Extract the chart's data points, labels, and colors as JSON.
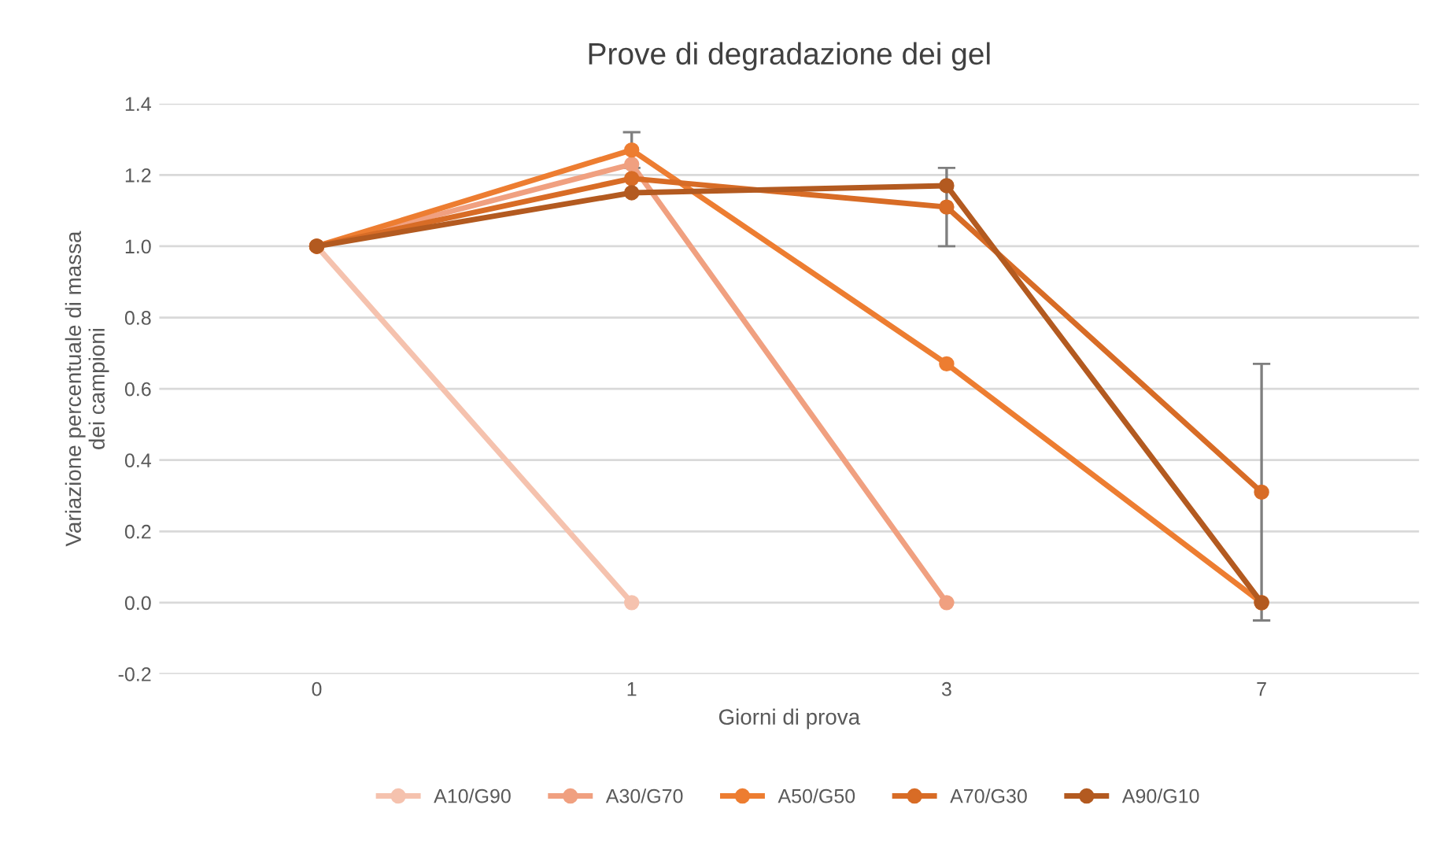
{
  "chart_data": {
    "type": "line",
    "title": "Prove di degradazione dei gel",
    "xlabel": "Giorni di prova",
    "ylabel": "Variazione percentuale di massa\ndei campioni",
    "categories": [
      "0",
      "1",
      "3",
      "7"
    ],
    "series": [
      {
        "name": "A10/G90",
        "color": "#f5c2ae",
        "values": [
          1.0,
          0.0,
          null,
          null
        ]
      },
      {
        "name": "A30/G70",
        "color": "#f0a080",
        "values": [
          1.0,
          1.23,
          0.0,
          null
        ]
      },
      {
        "name": "A50/G50",
        "color": "#ed7d31",
        "values": [
          1.0,
          1.27,
          0.67,
          0.0
        ],
        "errors": [
          null,
          0.05,
          null,
          null
        ]
      },
      {
        "name": "A70/G30",
        "color": "#d86c26",
        "values": [
          1.0,
          1.19,
          1.11,
          0.31
        ],
        "errors": [
          null,
          null,
          0.11,
          0.36
        ]
      },
      {
        "name": "A90/G10",
        "color": "#b35a20",
        "values": [
          1.0,
          1.15,
          1.17,
          0.0
        ]
      }
    ],
    "ylim": [
      -0.2,
      1.4
    ],
    "yticks": [
      {
        "value": -0.2,
        "label": "-0.2"
      },
      {
        "value": 0,
        "label": "0.0"
      },
      {
        "value": 0.2,
        "label": "0.2"
      },
      {
        "value": 0.4,
        "label": "0.4"
      },
      {
        "value": 0.6,
        "label": "0.6"
      },
      {
        "value": 0.8,
        "label": "0.8"
      },
      {
        "value": 1.0,
        "label": "1.0"
      },
      {
        "value": 1.2,
        "label": "1.2"
      },
      {
        "value": 1.4,
        "label": "1.4"
      }
    ],
    "grid": "y",
    "legend": "bottom",
    "marker": "circle",
    "line_style": "solid"
  }
}
